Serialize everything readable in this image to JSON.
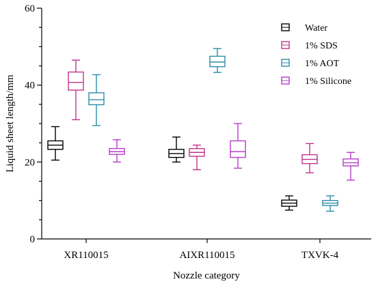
{
  "chart_data": {
    "type": "boxplot",
    "xlabel": "Nozzle category",
    "ylabel": "Liquid sheet length/mm",
    "ylim": [
      0,
      60
    ],
    "yticks": [
      0,
      20,
      40,
      60
    ],
    "categories": [
      "XR110015",
      "AIXR110015",
      "TXVK-4"
    ],
    "legend_position": "top-right",
    "grid": false,
    "series": [
      {
        "name": "Water",
        "color": "#000000",
        "boxes": [
          {
            "min": 20.5,
            "q1": 23.3,
            "median": 24.4,
            "q3": 25.5,
            "max": 29.2
          },
          {
            "min": 20.0,
            "q1": 21.2,
            "median": 22.2,
            "q3": 23.3,
            "max": 26.5
          },
          {
            "min": 7.5,
            "q1": 8.5,
            "median": 9.3,
            "q3": 10.1,
            "max": 11.2
          }
        ]
      },
      {
        "name": "1% SDS",
        "color": "#c0338a",
        "boxes": [
          {
            "min": 31.0,
            "q1": 38.7,
            "median": 40.7,
            "q3": 43.4,
            "max": 46.5
          },
          {
            "min": 18.0,
            "q1": 21.5,
            "median": 22.5,
            "q3": 23.5,
            "max": 24.4
          },
          {
            "min": 17.2,
            "q1": 19.6,
            "median": 20.7,
            "q3": 21.9,
            "max": 24.8
          }
        ]
      },
      {
        "name": "1% AOT",
        "color": "#2a8ca8",
        "boxes": [
          {
            "min": 29.5,
            "q1": 34.9,
            "median": 36.2,
            "q3": 38.0,
            "max": 42.7
          },
          {
            "min": 43.3,
            "q1": 44.8,
            "median": 46.0,
            "q3": 47.5,
            "max": 49.5
          },
          {
            "min": 7.2,
            "q1": 8.7,
            "median": 9.3,
            "q3": 10.0,
            "max": 11.2
          }
        ]
      },
      {
        "name": "1% Silicone",
        "color": "#b63cc8",
        "boxes": [
          {
            "min": 20.0,
            "q1": 22.0,
            "median": 22.7,
            "q3": 23.5,
            "max": 25.8
          },
          {
            "min": 18.4,
            "q1": 21.2,
            "median": 22.7,
            "q3": 25.5,
            "max": 30.0
          },
          {
            "min": 15.3,
            "q1": 19.0,
            "median": 19.8,
            "q3": 20.8,
            "max": 22.5
          }
        ]
      }
    ]
  }
}
